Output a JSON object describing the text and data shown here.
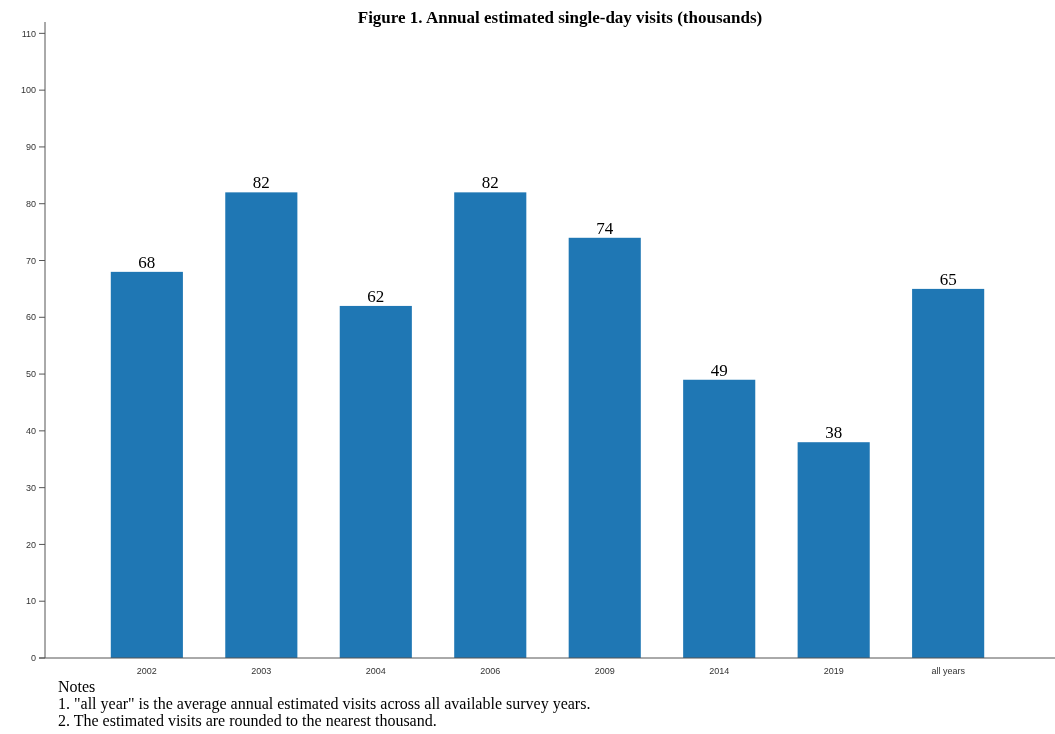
{
  "chart_data": {
    "type": "bar",
    "title": "Figure 1. Annual estimated single-day visits (thousands)",
    "categories": [
      "2002",
      "2003",
      "2004",
      "2006",
      "2009",
      "2014",
      "2019",
      "all years"
    ],
    "values": [
      68,
      82,
      62,
      82,
      74,
      49,
      38,
      65
    ],
    "color": "#1f77b4",
    "data_labels": true,
    "ylim": [
      0,
      112
    ],
    "yticks": [
      0,
      10,
      20,
      30,
      40,
      50,
      60,
      70,
      80,
      90,
      100,
      110
    ],
    "annotations": [
      "Notes",
      "1. \"all year\" is the average annual estimated visits across all available survey years.",
      "2. The estimated visits are rounded to the nearest thousand."
    ]
  }
}
